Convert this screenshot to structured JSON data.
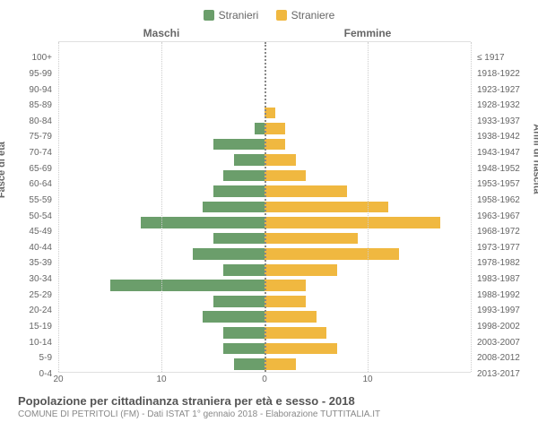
{
  "legend": {
    "male": {
      "label": "Stranieri",
      "color": "#6b9e6b"
    },
    "female": {
      "label": "Straniere",
      "color": "#f0b840"
    }
  },
  "columns": {
    "left": "Maschi",
    "right": "Femmine"
  },
  "axes": {
    "left_title": "Fasce di età",
    "right_title": "Anni di nascita",
    "x_max": 20,
    "x_ticks_left": [
      20,
      10,
      0
    ],
    "x_ticks_right": [
      0,
      10
    ],
    "grid_color": "#cccccc",
    "center_color": "#888888"
  },
  "pyramid": {
    "type": "population-pyramid",
    "rows": [
      {
        "age": "100+",
        "birth": "≤ 1917",
        "m": 0,
        "f": 0
      },
      {
        "age": "95-99",
        "birth": "1918-1922",
        "m": 0,
        "f": 0
      },
      {
        "age": "90-94",
        "birth": "1923-1927",
        "m": 0,
        "f": 0
      },
      {
        "age": "85-89",
        "birth": "1928-1932",
        "m": 0,
        "f": 0
      },
      {
        "age": "80-84",
        "birth": "1933-1937",
        "m": 0,
        "f": 1
      },
      {
        "age": "75-79",
        "birth": "1938-1942",
        "m": 1,
        "f": 2
      },
      {
        "age": "70-74",
        "birth": "1943-1947",
        "m": 5,
        "f": 2
      },
      {
        "age": "65-69",
        "birth": "1948-1952",
        "m": 3,
        "f": 3
      },
      {
        "age": "60-64",
        "birth": "1953-1957",
        "m": 4,
        "f": 4
      },
      {
        "age": "55-59",
        "birth": "1958-1962",
        "m": 5,
        "f": 8
      },
      {
        "age": "50-54",
        "birth": "1963-1967",
        "m": 6,
        "f": 12
      },
      {
        "age": "45-49",
        "birth": "1968-1972",
        "m": 12,
        "f": 17
      },
      {
        "age": "40-44",
        "birth": "1973-1977",
        "m": 5,
        "f": 9
      },
      {
        "age": "35-39",
        "birth": "1978-1982",
        "m": 7,
        "f": 13
      },
      {
        "age": "30-34",
        "birth": "1983-1987",
        "m": 4,
        "f": 7
      },
      {
        "age": "25-29",
        "birth": "1988-1992",
        "m": 15,
        "f": 4
      },
      {
        "age": "20-24",
        "birth": "1993-1997",
        "m": 5,
        "f": 4
      },
      {
        "age": "15-19",
        "birth": "1998-2002",
        "m": 6,
        "f": 5
      },
      {
        "age": "10-14",
        "birth": "2003-2007",
        "m": 4,
        "f": 6
      },
      {
        "age": "5-9",
        "birth": "2008-2012",
        "m": 4,
        "f": 7
      },
      {
        "age": "0-4",
        "birth": "2013-2017",
        "m": 3,
        "f": 3
      }
    ]
  },
  "footer": {
    "title": "Popolazione per cittadinanza straniera per età e sesso - 2018",
    "subtitle": "COMUNE DI PETRITOLI (FM) - Dati ISTAT 1° gennaio 2018 - Elaborazione TUTTITALIA.IT"
  }
}
